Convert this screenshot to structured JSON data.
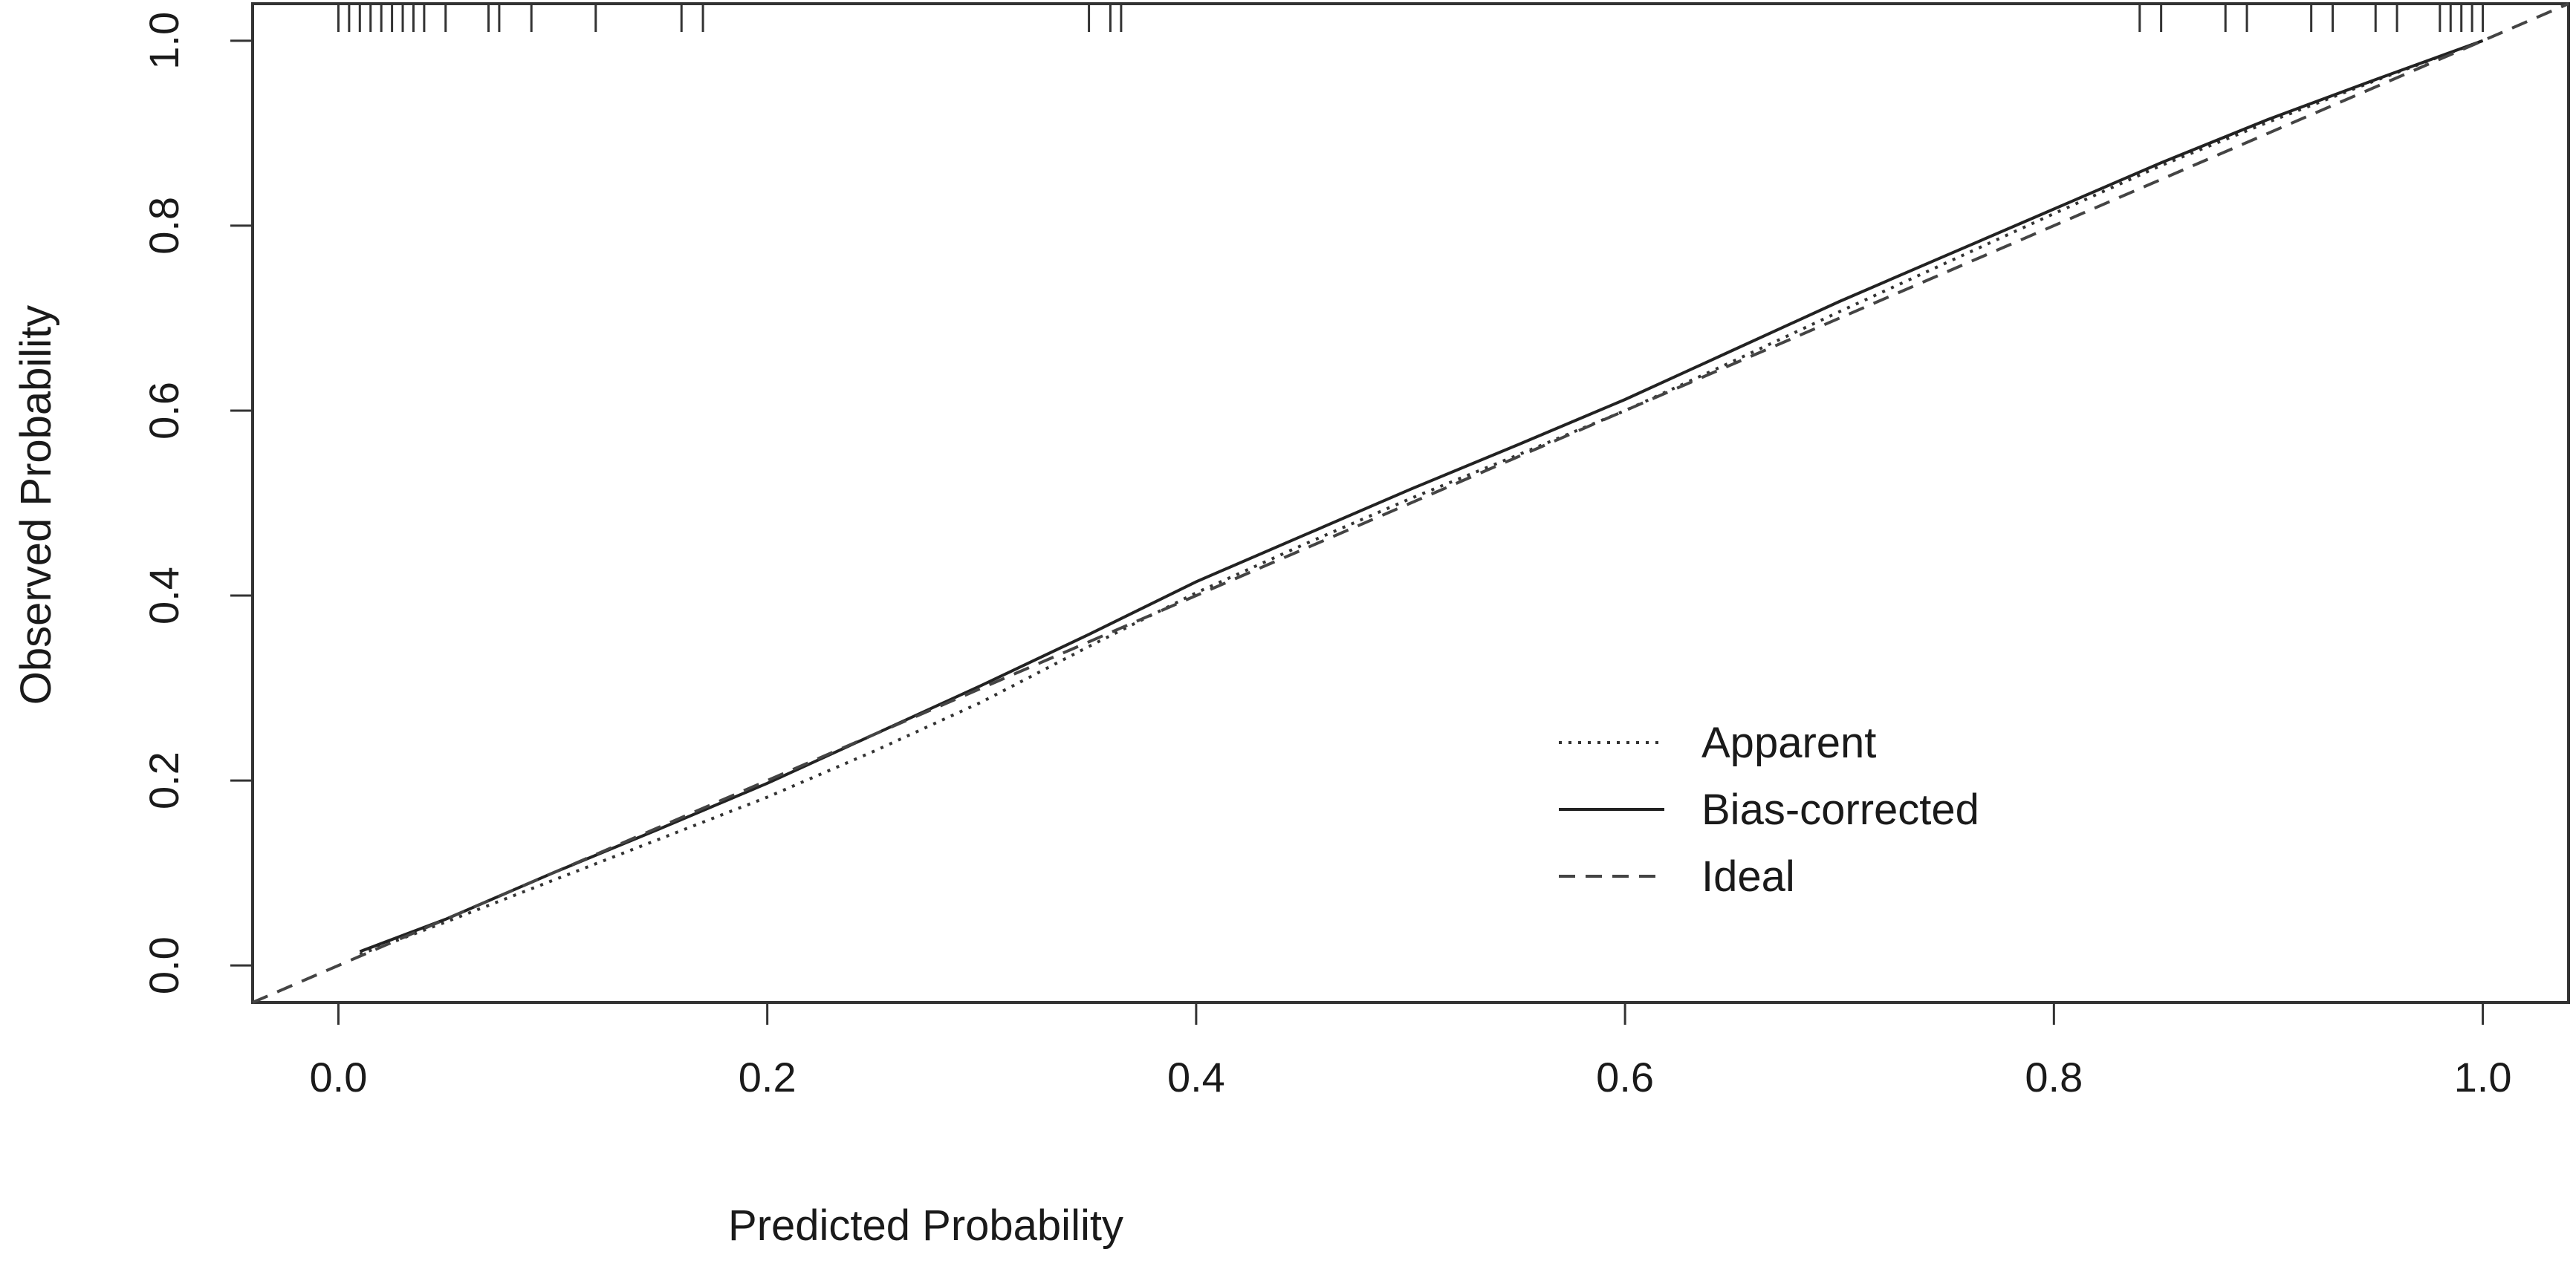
{
  "chart_data": {
    "type": "line",
    "title": "",
    "xlabel": "Predicted Probability",
    "ylabel": "Observed Probability",
    "xlim": [
      -0.04,
      1.04
    ],
    "ylim": [
      -0.04,
      1.04
    ],
    "x_ticks": [
      0.0,
      0.2,
      0.4,
      0.6,
      0.8,
      1.0
    ],
    "x_tick_labels": [
      "0.0",
      "0.2",
      "0.4",
      "0.6",
      "0.8",
      "1.0"
    ],
    "y_ticks": [
      0.0,
      0.2,
      0.4,
      0.6,
      0.8,
      1.0
    ],
    "y_tick_labels": [
      "0.0",
      "0.2",
      "0.4",
      "0.6",
      "0.8",
      "1.0"
    ],
    "grid": false,
    "legend_position": "bottom-right",
    "series": [
      {
        "name": "Apparent",
        "style": "dotted",
        "x": [
          0.01,
          0.05,
          0.1,
          0.15,
          0.2,
          0.25,
          0.3,
          0.35,
          0.4,
          0.45,
          0.5,
          0.55,
          0.6,
          0.65,
          0.7,
          0.75,
          0.8,
          0.85,
          0.9,
          0.95,
          1.0
        ],
        "y": [
          0.012,
          0.047,
          0.092,
          0.137,
          0.182,
          0.232,
          0.285,
          0.345,
          0.403,
          0.455,
          0.505,
          0.552,
          0.6,
          0.653,
          0.707,
          0.76,
          0.813,
          0.865,
          0.912,
          0.957,
          1.0
        ]
      },
      {
        "name": "Bias-corrected",
        "style": "solid",
        "x": [
          0.01,
          0.05,
          0.1,
          0.15,
          0.2,
          0.25,
          0.3,
          0.35,
          0.4,
          0.45,
          0.5,
          0.55,
          0.6,
          0.65,
          0.7,
          0.75,
          0.8,
          0.85,
          0.9,
          0.95,
          1.0
        ],
        "y": [
          0.015,
          0.05,
          0.1,
          0.148,
          0.197,
          0.25,
          0.303,
          0.358,
          0.415,
          0.465,
          0.515,
          0.563,
          0.612,
          0.665,
          0.718,
          0.768,
          0.818,
          0.868,
          0.915,
          0.958,
          1.0
        ]
      },
      {
        "name": "Ideal",
        "style": "dashed",
        "x": [
          -0.04,
          1.04
        ],
        "y": [
          -0.04,
          1.04
        ]
      }
    ],
    "rug_top_x": [
      0.0,
      0.005,
      0.01,
      0.015,
      0.02,
      0.025,
      0.03,
      0.035,
      0.04,
      0.05,
      0.07,
      0.075,
      0.09,
      0.12,
      0.16,
      0.17,
      0.35,
      0.36,
      0.365,
      0.84,
      0.85,
      0.88,
      0.89,
      0.92,
      0.93,
      0.95,
      0.96,
      0.98,
      0.985,
      0.99,
      0.995,
      1.0
    ]
  }
}
